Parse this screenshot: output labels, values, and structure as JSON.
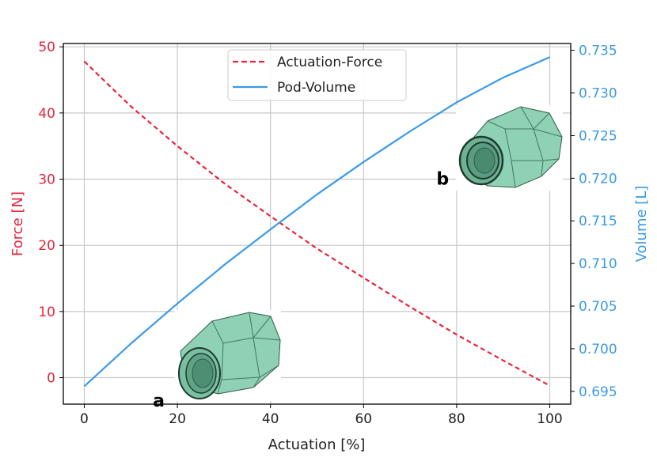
{
  "chart_data": {
    "type": "line",
    "xlabel": "Actuation [%]",
    "ylabel_left": "Force [N]",
    "ylabel_right": "Volume [L]",
    "xlim": [
      -4.5,
      104.5
    ],
    "ylim_left": [
      -4,
      50.5
    ],
    "ylim_right": [
      0.6935,
      0.7358
    ],
    "xticks": [
      0,
      20,
      40,
      60,
      80,
      100
    ],
    "yticks_left": [
      0,
      10,
      20,
      30,
      40,
      50
    ],
    "yticks_right": [
      0.695,
      0.7,
      0.705,
      0.71,
      0.715,
      0.72,
      0.725,
      0.73,
      0.735
    ],
    "grid": true,
    "legend_position": "top-center",
    "x": [
      0,
      10,
      20,
      30,
      40,
      50,
      60,
      70,
      80,
      90,
      100
    ],
    "series": [
      {
        "name": "Actuation-Force",
        "axis": "left",
        "color": "#e8253a",
        "style": "dashed",
        "values": [
          47.8,
          41.0,
          35.0,
          29.4,
          24.4,
          19.5,
          15.1,
          10.7,
          6.5,
          2.6,
          -1.2
        ]
      },
      {
        "name": "Pod-Volume",
        "axis": "right",
        "color": "#3a9ae8",
        "style": "solid",
        "values": [
          0.6956,
          0.7006,
          0.7053,
          0.7098,
          0.714,
          0.7181,
          0.7219,
          0.7255,
          0.7289,
          0.7318,
          0.7342
        ]
      }
    ],
    "annotations": [
      {
        "text": "a",
        "x": 16,
        "y_left": -1.7
      },
      {
        "text": "b",
        "x": 77,
        "y_left": 31.8
      }
    ]
  }
}
